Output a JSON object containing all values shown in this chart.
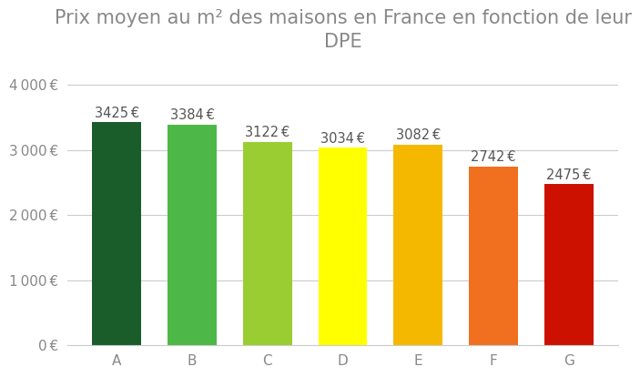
{
  "categories": [
    "A",
    "B",
    "C",
    "D",
    "E",
    "F",
    "G"
  ],
  "values": [
    3425,
    3384,
    3122,
    3034,
    3082,
    2742,
    2475
  ],
  "bar_colors": [
    "#1a5c2a",
    "#4db847",
    "#9acd32",
    "#ffff00",
    "#f5b800",
    "#f07020",
    "#cc1100"
  ],
  "title_line1": "Prix moyen au m² des maisons en France en fonction de leur",
  "title_line2": "DPE",
  "ylim": [
    0,
    4300
  ],
  "yticks": [
    0,
    1000,
    2000,
    3000,
    4000
  ],
  "background_color": "#ffffff",
  "title_fontsize": 15,
  "tick_fontsize": 11,
  "bar_label_fontsize": 10.5,
  "title_color": "#888888",
  "tick_color": "#888888",
  "grid_color": "#cccccc",
  "bar_label_color": "#555555"
}
